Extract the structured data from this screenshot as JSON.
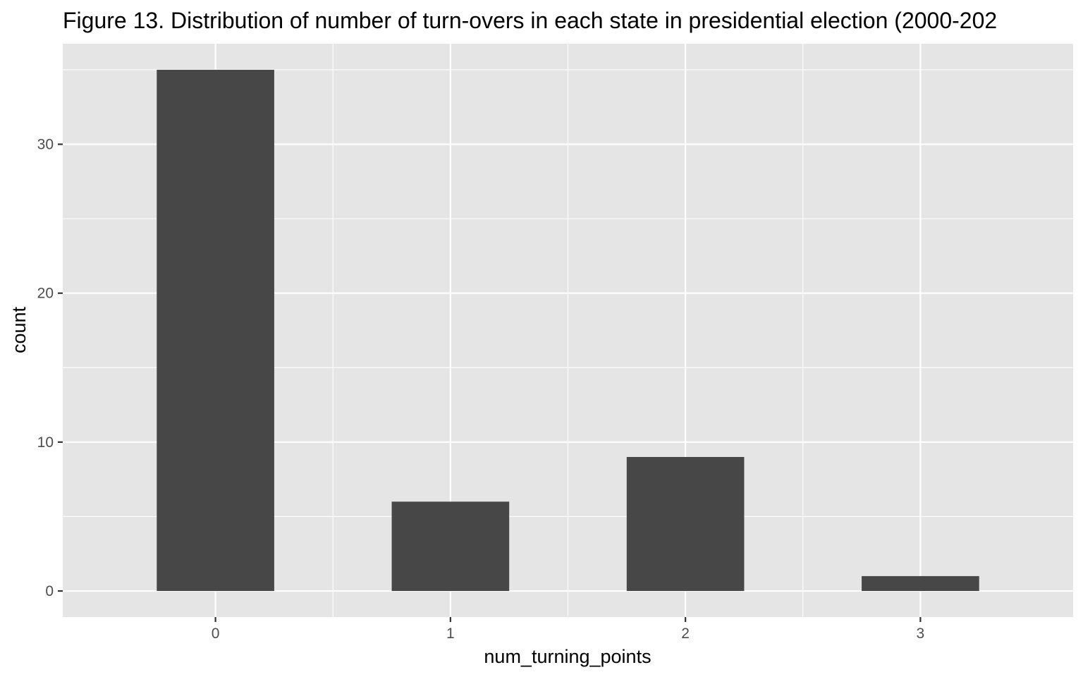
{
  "chart_data": {
    "type": "bar",
    "title": "Figure 13. Distribution of number of turn-overs in each state in presidential election (2000-202",
    "xlabel": "num_turning_points",
    "ylabel": "count",
    "categories": [
      "0",
      "1",
      "2",
      "3"
    ],
    "values": [
      35,
      6,
      9,
      1
    ],
    "ylim": [
      -1.75,
      36.75
    ],
    "yticks": [
      0,
      10,
      20,
      30
    ],
    "grid": true,
    "colors": {
      "panel": "#e5e5e5",
      "grid": "#ffffff",
      "bar": "#474747",
      "tick_text": "#4d4d4d",
      "tick_mark": "#333333"
    }
  }
}
